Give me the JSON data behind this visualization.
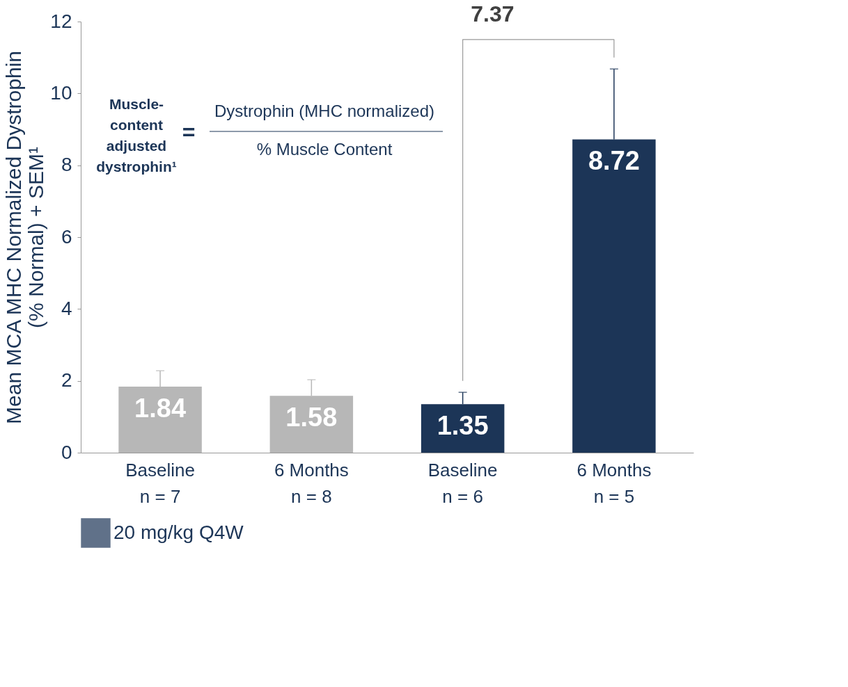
{
  "chart_data": {
    "type": "bar",
    "ylabel": "Mean MCA MHC Normalized Dystrophin\n(% Normal) + SEM¹",
    "categories": [
      "Baseline\nn = 7",
      "6 Months\nn = 8",
      "Baseline\nn = 6",
      "6 Months\nn = 5"
    ],
    "series": [
      {
        "color": "#b7b7b7",
        "values": [
          1.84,
          1.58,
          null,
          null
        ],
        "errors": [
          [
            1.84,
            2.28
          ],
          [
            1.58,
            2.03
          ],
          null,
          null
        ]
      },
      {
        "name": "20 mg/kg Q4W",
        "color": "#1c3557",
        "values": [
          null,
          null,
          1.35,
          8.72
        ],
        "errors": [
          null,
          null,
          [
            1.35,
            1.68
          ],
          [
            8.72,
            10.68
          ]
        ]
      }
    ],
    "ylim": [
      0,
      12
    ],
    "yticks": [
      0,
      2,
      4,
      6,
      8,
      10,
      12
    ],
    "grid": false,
    "legend": "bottom",
    "data_labels": true,
    "annotations": [
      "7.37",
      "Muscle-\ncontent\nadjusted\ndystrophin¹",
      "=",
      "Dystrophin (MHC normalized)",
      "% Muscle Content"
    ]
  }
}
